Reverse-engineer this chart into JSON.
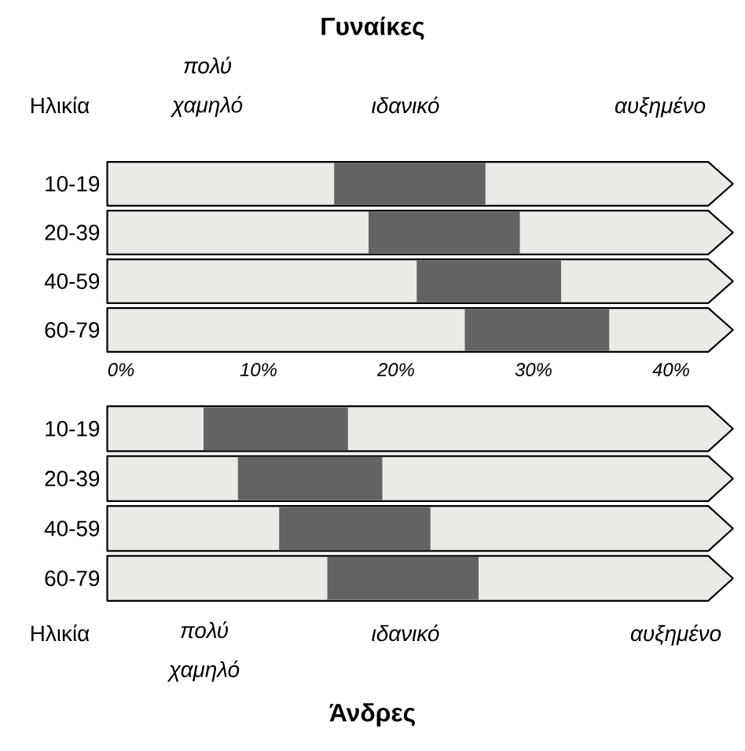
{
  "chart_data": [
    {
      "type": "bar",
      "orientation": "horizontal",
      "title": "Γυναίκες",
      "ylabel": "Ηλικία",
      "categories": [
        "10-19",
        "20-39",
        "40-59",
        "60-79"
      ],
      "base": [
        15.5,
        18,
        21.5,
        25
      ],
      "values": [
        11,
        11,
        10.5,
        10.5
      ],
      "color": "#636363",
      "xlim": [
        -1,
        44.5
      ],
      "xticks": [
        {
          "value": 0,
          "label": "0%"
        },
        {
          "value": 10,
          "label": "10%"
        },
        {
          "value": 20,
          "label": "20%"
        },
        {
          "value": 30,
          "label": "30%"
        },
        {
          "value": 40,
          "label": "40%"
        }
      ],
      "annotations": [
        "πολύ χαμηλό",
        "ιδανικό",
        "αυξημένο"
      ]
    },
    {
      "type": "bar",
      "orientation": "horizontal",
      "title": "Άνδρες",
      "ylabel": "Ηλικία",
      "categories": [
        "10-19",
        "20-39",
        "40-59",
        "60-79"
      ],
      "base": [
        6,
        8.5,
        11.5,
        15
      ],
      "values": [
        10.5,
        10.5,
        11,
        11
      ],
      "color": "#636363",
      "xlim": [
        -1,
        44.5
      ],
      "tick_labels": "y",
      "annotations": [
        "πολύ χαμηλό",
        "ιδανικό",
        "αυξημένο"
      ]
    }
  ]
}
